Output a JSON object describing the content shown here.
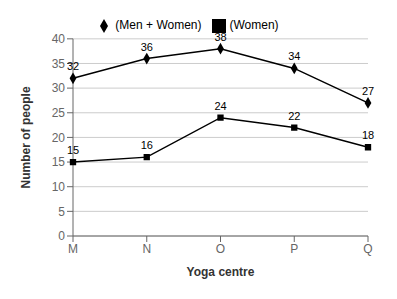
{
  "chart_data": {
    "type": "line",
    "categories": [
      "M",
      "N",
      "O",
      "P",
      "Q"
    ],
    "series": [
      {
        "name": "(Men + Women)",
        "color": "#000000",
        "marker": "diamond",
        "values": [
          32,
          36,
          38,
          34,
          27
        ]
      },
      {
        "name": "(Women)",
        "color": "#000000",
        "marker": "square",
        "values": [
          15,
          16,
          24,
          22,
          18
        ]
      }
    ],
    "xlabel": "Yoga centre",
    "ylabel": "Number of people",
    "ylim": [
      0,
      40
    ],
    "yticks": [
      0,
      5,
      10,
      15,
      20,
      25,
      30,
      35,
      40
    ],
    "grid": true,
    "legend": "top",
    "data_labels": true
  }
}
